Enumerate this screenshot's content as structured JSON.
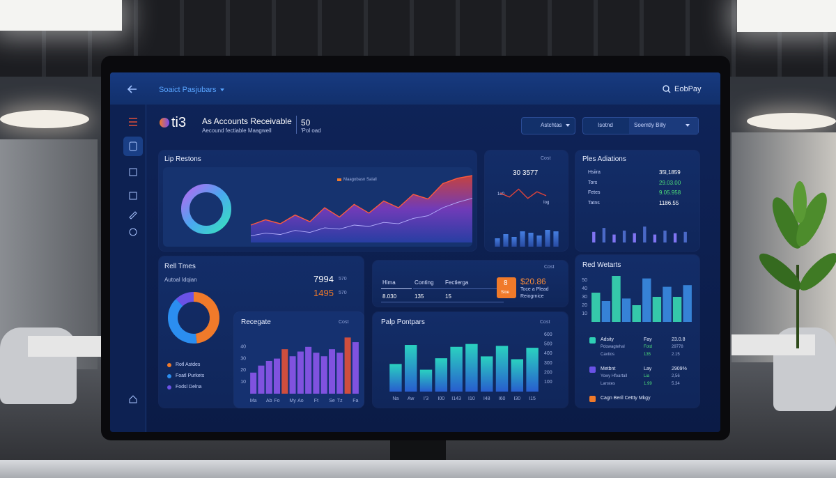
{
  "topbar": {
    "title": "Soaict Pasjubars",
    "brand": "EobPay"
  },
  "header": {
    "logo": "ti3",
    "title": "As Accounts Receivable",
    "subtitle": "Aecound fectiable Maagwell",
    "count": "50",
    "count_label": "'Pol oad"
  },
  "filters": {
    "button": "Astchtas",
    "toggle": "Isotnd",
    "select": "Soemtly Billy"
  },
  "revenue_panel": {
    "title": "Lip Restons",
    "legend": "Maagobasn Salall",
    "chart": {
      "type": "area",
      "ylim": [
        0,
        100
      ],
      "series": [
        {
          "color": "#ff5a3c",
          "values": [
            26,
            34,
            28,
            41,
            31,
            52,
            38,
            57,
            44,
            62,
            52,
            72,
            65,
            88,
            96,
            100
          ]
        },
        {
          "color": "#b7b2ff",
          "values": [
            10,
            14,
            12,
            18,
            15,
            22,
            20,
            26,
            24,
            30,
            28,
            36,
            40,
            52,
            60,
            66
          ]
        }
      ]
    }
  },
  "cost_panel": {
    "label": "Cost",
    "value": "30 3577",
    "point_labels": [
      "1o0",
      "Iog"
    ],
    "line": {
      "type": "line",
      "color": "#e0443a",
      "ylim": [
        0,
        100
      ],
      "values": [
        55,
        40,
        70,
        35,
        60,
        45
      ]
    },
    "bars": {
      "type": "bar",
      "gradient": [
        "#4a86ec",
        "#2a4ea8"
      ],
      "ylim": [
        0,
        100
      ],
      "values": [
        30,
        45,
        35,
        55,
        50,
        40,
        60,
        55
      ]
    }
  },
  "additions_panel": {
    "title": "Ples Adiations",
    "rows": [
      [
        "Hsiira",
        "35l,1859"
      ],
      [
        "Tors",
        "29.03.00"
      ],
      [
        "Fetes",
        "9.05.958"
      ],
      [
        "Tatns",
        "1186.55"
      ]
    ],
    "bars": {
      "type": "bar",
      "colors": [
        "#8a7bff",
        "#4f6fd0"
      ],
      "ylim": [
        0,
        100
      ],
      "values": [
        40,
        55,
        30,
        45,
        35,
        60,
        30,
        45,
        35,
        40
      ]
    }
  },
  "times_panel": {
    "title": "Rell Tmes",
    "subtitle": "Autoal Idqian",
    "rows": [
      [
        "7994",
        "570"
      ],
      [
        "1495",
        "570"
      ]
    ],
    "donut": {
      "type": "donut",
      "categories": [
        "Rotl Astdes",
        "Foatl Purkets",
        "Fodsl Delna"
      ],
      "values": [
        48,
        40,
        12
      ],
      "colors": [
        "#f07a2a",
        "#2b8ef0",
        "#6a52e6"
      ]
    }
  },
  "recegate_panel": {
    "title": "Recegate",
    "label": "Cost",
    "chart": {
      "type": "bar",
      "ylim": [
        0,
        50
      ],
      "yticks": [
        10,
        20,
        30,
        40
      ],
      "colors": [
        "#8a55e8",
        "#8a55e8",
        "#8a55e8",
        "#8a55e8",
        "#e0503a",
        "#8a55e8",
        "#8a55e8",
        "#8a55e8",
        "#8a55e8",
        "#8a55e8",
        "#8a55e8",
        "#8a55e8",
        "#e0503a",
        "#8a55e8"
      ],
      "categories": [
        "Ma",
        null,
        "Ab",
        "Fo",
        null,
        "My",
        "Ao",
        null,
        "Ft",
        null,
        "Se",
        "Tz",
        null,
        "Fa"
      ],
      "values": [
        18,
        24,
        28,
        30,
        38,
        32,
        36,
        40,
        35,
        32,
        38,
        35,
        48,
        44
      ]
    }
  },
  "summary_panel": {
    "label": "Cost",
    "headers": [
      "Hima",
      "Conting",
      "Fectierga"
    ],
    "row": [
      "8.030",
      "135",
      "15"
    ],
    "badge": "8",
    "badge_label": "Sloe",
    "amount": "$20.86",
    "amount_lines": [
      "Toce a Plead",
      "Reiogrnice"
    ]
  },
  "pumps_panel": {
    "title": "Palp Pontpars",
    "label": "Cost",
    "chart": {
      "type": "bar",
      "gradient": [
        "#2ce0c8",
        "#2a62d8"
      ],
      "ylim": [
        0,
        600
      ],
      "yticks": [
        100,
        200,
        300,
        400,
        500,
        600
      ],
      "categories": [
        "Na",
        "Aw",
        "I'3",
        "I00",
        "I143",
        "I10",
        "I48",
        "I60",
        "I30",
        "I15"
      ],
      "values": [
        290,
        490,
        230,
        350,
        470,
        500,
        370,
        480,
        340,
        460
      ]
    }
  },
  "widgets_panel": {
    "title": "Red Wetarts",
    "chart": {
      "type": "bar",
      "colors": [
        "#38d6b0",
        "#3a8ae0"
      ],
      "ylim": [
        0,
        55
      ],
      "yticks": [
        10,
        20,
        30,
        40,
        50
      ],
      "values": [
        35,
        25,
        55,
        28,
        20,
        52,
        30,
        42,
        30,
        44
      ]
    },
    "legend": [
      {
        "color": "#2fcfb5",
        "rows": [
          [
            "Adsity",
            "Fay",
            "23.0.8"
          ],
          [
            "Pdowagtehal",
            "Fotd",
            "29778"
          ],
          [
            "Cavtios",
            "135",
            "2.15"
          ]
        ]
      },
      {
        "color": "#6a52e6",
        "rows": [
          [
            "Metbnt",
            "Lay",
            "2909%"
          ],
          [
            "Yowy Hfoartall",
            "Lia",
            "2,56"
          ],
          [
            "Lanstes",
            "1.99",
            "5.34"
          ]
        ]
      },
      {
        "color": "#f07a2a",
        "rows": [
          [
            "Cagn Beril Cettty Mkgy"
          ]
        ]
      }
    ]
  }
}
